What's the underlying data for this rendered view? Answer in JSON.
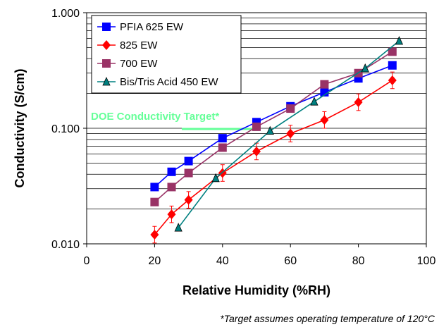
{
  "chart_data": {
    "type": "scatter",
    "xlabel": "Relative Humidity (%RH)",
    "ylabel": "Conductivity (S/cm)",
    "xlim": [
      0,
      100
    ],
    "ylim": [
      0.01,
      1
    ],
    "y_scale": "log",
    "x_ticks": [
      "0",
      "20",
      "40",
      "60",
      "80",
      "100"
    ],
    "y_ticks": [
      "0.010",
      "0.100",
      "1.000"
    ],
    "grid": "horizontal",
    "legend_position": "top-left",
    "series": [
      {
        "name": "PFIA 625 EW",
        "color": "#0000ff",
        "marker": "square",
        "points": [
          [
            20,
            0.031
          ],
          [
            25,
            0.042
          ],
          [
            30,
            0.052
          ],
          [
            40,
            0.082
          ],
          [
            50,
            0.113
          ],
          [
            60,
            0.155
          ],
          [
            70,
            0.205
          ],
          [
            80,
            0.27
          ],
          [
            90,
            0.35
          ]
        ]
      },
      {
        "name": "825 EW",
        "color": "#ff0000",
        "marker": "diamond",
        "error_bars": true,
        "points": [
          [
            20,
            0.012
          ],
          [
            25,
            0.018
          ],
          [
            30,
            0.024
          ],
          [
            40,
            0.041
          ],
          [
            50,
            0.063
          ],
          [
            60,
            0.09
          ],
          [
            70,
            0.118
          ],
          [
            80,
            0.168
          ],
          [
            90,
            0.26
          ]
        ]
      },
      {
        "name": "700 EW",
        "color": "#993366",
        "marker": "square",
        "points": [
          [
            20,
            0.023
          ],
          [
            25,
            0.031
          ],
          [
            30,
            0.041
          ],
          [
            40,
            0.068
          ],
          [
            50,
            0.103
          ],
          [
            60,
            0.148
          ],
          [
            70,
            0.24
          ],
          [
            80,
            0.3
          ],
          [
            90,
            0.46
          ]
        ]
      },
      {
        "name": "Bis/Tris Acid 450 EW",
        "color": "#008080",
        "marker": "triangle",
        "points": [
          [
            27,
            0.0138
          ],
          [
            38,
            0.037
          ],
          [
            54,
            0.095
          ],
          [
            67,
            0.17
          ],
          [
            82,
            0.33
          ],
          [
            92,
            0.57
          ]
        ]
      }
    ],
    "annotation": {
      "text": "DOE Conductivity Target*",
      "color": "#66ff99",
      "x_start": 28,
      "x_end": 50,
      "y": 0.1
    },
    "footnote": "*Target assumes operating temperature of 120°C"
  }
}
